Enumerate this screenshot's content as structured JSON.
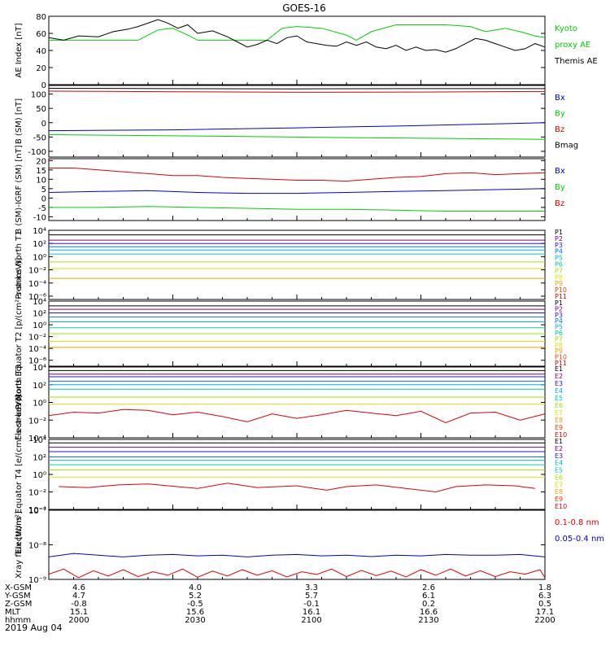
{
  "title": "GOES-16",
  "date_label": "2019 Aug 04",
  "footer": {
    "row_labels": [
      "X-GSM",
      "Y-GSM",
      "Z-GSM",
      "MLT",
      "hhmm"
    ],
    "columns": [
      [
        "4.6",
        "4.7",
        "-0.8",
        "15.1",
        "2000"
      ],
      [
        "4.0",
        "5.2",
        "-0.5",
        "15.6",
        "2030"
      ],
      [
        "3.3",
        "5.7",
        "-0.1",
        "16.1",
        "2100"
      ],
      [
        "2.6",
        "6.1",
        "0.2",
        "16.6",
        "2130"
      ],
      [
        "1.8",
        "6.3",
        "0.5",
        "17.1",
        "2200"
      ]
    ]
  },
  "colors": {
    "black": "#000000",
    "red": "#e00000",
    "green": "#00d000",
    "blue": "#0000d0",
    "p1": "#000000",
    "p2": "#800080",
    "p3": "#3010d0",
    "p4": "#0070ff",
    "p5": "#00b0e0",
    "p6": "#00d0a0",
    "p7": "#a0e000",
    "p8": "#e0e000",
    "p9": "#f0a000",
    "p10": "#f04000",
    "p11": "#e00000"
  },
  "chart_data": [
    {
      "type": "line",
      "id": "ae",
      "ylabel": "AE Index [nT]",
      "ylim": [
        0,
        80
      ],
      "ticks": [
        "0",
        "20",
        "40",
        "60",
        "80"
      ],
      "tick_values": [
        0,
        20,
        40,
        60,
        80
      ],
      "legend": [
        {
          "text": "Kyoto",
          "color": "green"
        },
        {
          "text": "proxy AE",
          "color": "green"
        },
        {
          "text": "Themis AE",
          "color": "black"
        }
      ],
      "series": [
        {
          "name": "Kyoto proxy AE",
          "color": "green",
          "x": [
            0,
            0.1,
            0.18,
            0.22,
            0.25,
            0.28,
            0.3,
            0.33,
            0.37,
            0.4,
            0.44,
            0.47,
            0.5,
            0.55,
            0.6,
            0.62,
            0.65,
            0.7,
            0.72,
            0.8,
            0.85,
            0.88,
            0.92,
            0.95,
            0.98,
            1.0
          ],
          "y": [
            52,
            52,
            52,
            64,
            66,
            58,
            52,
            52,
            52,
            52,
            52,
            66,
            68,
            66,
            58,
            52,
            62,
            70,
            70,
            70,
            68,
            62,
            66,
            62,
            57,
            55
          ]
        },
        {
          "name": "Themis AE",
          "color": "black",
          "x": [
            0,
            0.03,
            0.06,
            0.1,
            0.13,
            0.16,
            0.18,
            0.2,
            0.22,
            0.24,
            0.26,
            0.28,
            0.3,
            0.33,
            0.36,
            0.38,
            0.4,
            0.42,
            0.44,
            0.46,
            0.48,
            0.5,
            0.52,
            0.54,
            0.56,
            0.58,
            0.6,
            0.62,
            0.64,
            0.66,
            0.68,
            0.7,
            0.72,
            0.74,
            0.76,
            0.78,
            0.8,
            0.82,
            0.84,
            0.86,
            0.88,
            0.9,
            0.92,
            0.94,
            0.96,
            0.98,
            1.0
          ],
          "y": [
            55,
            52,
            57,
            56,
            62,
            65,
            68,
            72,
            76,
            72,
            66,
            70,
            60,
            63,
            56,
            50,
            44,
            47,
            52,
            48,
            55,
            57,
            50,
            48,
            46,
            45,
            50,
            46,
            50,
            44,
            42,
            46,
            40,
            44,
            40,
            41,
            38,
            42,
            48,
            54,
            52,
            48,
            44,
            40,
            42,
            48,
            44
          ]
        }
      ]
    },
    {
      "type": "line",
      "id": "bsm",
      "ylabel": "B (SM) [nT]",
      "ylim": [
        -120,
        130
      ],
      "ticks": [
        "-100",
        "-50",
        "0",
        "50",
        "100"
      ],
      "tick_values": [
        -100,
        -50,
        0,
        50,
        100
      ],
      "legend": [
        {
          "text": "Bx",
          "color": "blue"
        },
        {
          "text": "By",
          "color": "green"
        },
        {
          "text": "Bz",
          "color": "red"
        },
        {
          "text": "Bmag",
          "color": "black"
        }
      ],
      "series": [
        {
          "name": "Bmag",
          "color": "black",
          "x": [
            0,
            0.25,
            0.5,
            0.75,
            1.0
          ],
          "y": [
            120,
            119,
            118,
            119,
            119
          ]
        },
        {
          "name": "Bz",
          "color": "red",
          "x": [
            0,
            0.25,
            0.5,
            0.75,
            1.0
          ],
          "y": [
            110,
            108,
            106,
            107,
            109
          ]
        },
        {
          "name": "Bx",
          "color": "blue",
          "x": [
            0,
            0.25,
            0.5,
            0.75,
            1.0
          ],
          "y": [
            -28,
            -25,
            -18,
            -10,
            0
          ]
        },
        {
          "name": "By",
          "color": "green",
          "x": [
            0,
            0.2,
            0.4,
            0.6,
            0.8,
            1.0
          ],
          "y": [
            -42,
            -45,
            -48,
            -52,
            -55,
            -58
          ]
        }
      ]
    },
    {
      "type": "line",
      "id": "bigrf",
      "ylabel": "B (SM)-IGRF (SM) [nT]",
      "ylim": [
        -12,
        21
      ],
      "ticks": [
        "-10",
        "-5",
        "0",
        "5",
        "10",
        "15",
        "20"
      ],
      "tick_values": [
        -10,
        -5,
        0,
        5,
        10,
        15,
        20
      ],
      "legend": [
        {
          "text": "Bx",
          "color": "blue"
        },
        {
          "text": "By",
          "color": "green"
        },
        {
          "text": "Bz",
          "color": "red"
        }
      ],
      "series": [
        {
          "name": "Bz",
          "color": "red",
          "x": [
            0,
            0.05,
            0.1,
            0.15,
            0.2,
            0.25,
            0.3,
            0.35,
            0.4,
            0.45,
            0.5,
            0.55,
            0.6,
            0.65,
            0.7,
            0.75,
            0.8,
            0.85,
            0.9,
            0.95,
            1.0
          ],
          "y": [
            16,
            16,
            15,
            14,
            13,
            12,
            12,
            11,
            10.5,
            10,
            9.5,
            9.5,
            9,
            10,
            11,
            11.5,
            13,
            13.5,
            12.5,
            13,
            13.5
          ]
        },
        {
          "name": "Bx",
          "color": "blue",
          "x": [
            0,
            0.1,
            0.2,
            0.3,
            0.4,
            0.5,
            0.6,
            0.7,
            0.8,
            0.9,
            1.0
          ],
          "y": [
            3,
            3.5,
            4,
            3,
            2.5,
            2.5,
            3,
            3.5,
            4,
            4.5,
            5
          ]
        },
        {
          "name": "By",
          "color": "green",
          "x": [
            0,
            0.1,
            0.2,
            0.3,
            0.4,
            0.5,
            0.6,
            0.7,
            0.8,
            0.9,
            1.0
          ],
          "y": [
            -5,
            -5,
            -4.5,
            -5,
            -5.5,
            -6,
            -6,
            -6.5,
            -7,
            -7,
            -7
          ]
        }
      ]
    },
    {
      "type": "line",
      "id": "pn",
      "log": true,
      "ylabel": "Protons North T1",
      "ylim_exp": [
        -6.5,
        4
      ],
      "ticks": [
        "10⁴",
        "10²",
        "10⁰",
        "10⁻²",
        "10⁻⁴",
        "10⁻⁶"
      ],
      "tick_values": [
        4,
        2,
        0,
        -2,
        -4,
        -6
      ],
      "legend": [
        {
          "text": "P1",
          "color": "p1"
        },
        {
          "text": "P2",
          "color": "p2"
        },
        {
          "text": "P3",
          "color": "p3"
        },
        {
          "text": "P4",
          "color": "p4"
        },
        {
          "text": "P5",
          "color": "p5"
        },
        {
          "text": "P6",
          "color": "p6"
        },
        {
          "text": "P7",
          "color": "p7"
        },
        {
          "text": "P8",
          "color": "p8"
        },
        {
          "text": "P9",
          "color": "p9"
        },
        {
          "text": "P10",
          "color": "p10"
        },
        {
          "text": "P11",
          "color": "p11"
        }
      ],
      "levels": [
        {
          "color": "p1",
          "y": 3.3
        },
        {
          "color": "p2",
          "y": 2.5
        },
        {
          "color": "p3",
          "y": 2.0
        },
        {
          "color": "p4",
          "y": 1.5
        },
        {
          "color": "p5",
          "y": 1.0
        },
        {
          "color": "p6",
          "y": 0.4
        },
        {
          "color": "p7",
          "y": -0.8
        },
        {
          "color": "p8",
          "y": -1.8
        },
        {
          "color": "p9",
          "y": -3.3
        }
      ]
    },
    {
      "type": "line",
      "id": "pe",
      "log": true,
      "ylabel": "Protons Equator T2 [p/(cm²-s-sr-keV)]",
      "ylim_exp": [
        -7,
        4
      ],
      "ticks": [
        "10⁴",
        "10²",
        "10⁰",
        "10⁻²",
        "10⁻⁴",
        "10⁻⁶"
      ],
      "tick_values": [
        4,
        2,
        0,
        -2,
        -4,
        -6
      ],
      "legend": [
        {
          "text": "P1",
          "color": "p1"
        },
        {
          "text": "P2",
          "color": "p2"
        },
        {
          "text": "P3",
          "color": "p3"
        },
        {
          "text": "P4",
          "color": "p4"
        },
        {
          "text": "P5",
          "color": "p5"
        },
        {
          "text": "P6",
          "color": "p6"
        },
        {
          "text": "P7",
          "color": "p7"
        },
        {
          "text": "P8",
          "color": "p8"
        },
        {
          "text": "P9",
          "color": "p9"
        },
        {
          "text": "P10",
          "color": "p10"
        },
        {
          "text": "P11",
          "color": "p11"
        }
      ],
      "levels": [
        {
          "color": "p1",
          "y": 3.2
        },
        {
          "color": "p2",
          "y": 2.6
        },
        {
          "color": "p3",
          "y": 2.0
        },
        {
          "color": "p4",
          "y": 1.3
        },
        {
          "color": "p5",
          "y": 0.5
        },
        {
          "color": "p6",
          "y": -0.5
        },
        {
          "color": "p7",
          "y": -1.5
        },
        {
          "color": "p8",
          "y": -2.8
        },
        {
          "color": "p9",
          "y": -3.8
        }
      ]
    },
    {
      "type": "line",
      "id": "en",
      "log": true,
      "ylabel": "Electrons North T3",
      "ylim_exp": [
        -4,
        4
      ],
      "ticks": [
        "10⁴",
        "10²",
        "10⁰",
        "10⁻²",
        "10⁻⁴"
      ],
      "tick_values": [
        4,
        2,
        0,
        -2,
        -4
      ],
      "legend": [
        {
          "text": "E1",
          "color": "p1"
        },
        {
          "text": "E2",
          "color": "p2"
        },
        {
          "text": "E3",
          "color": "p3"
        },
        {
          "text": "E4",
          "color": "p5"
        },
        {
          "text": "E5",
          "color": "p6"
        },
        {
          "text": "E6",
          "color": "p7"
        },
        {
          "text": "E7",
          "color": "p8"
        },
        {
          "text": "E8",
          "color": "p9"
        },
        {
          "text": "E9",
          "color": "p10"
        },
        {
          "text": "E10",
          "color": "p11"
        }
      ],
      "levels": [
        {
          "color": "p1",
          "y": 3.6
        },
        {
          "color": "p2",
          "y": 3.2
        },
        {
          "color": "p3",
          "y": 2.9
        },
        {
          "color": "p4",
          "y": 2.4
        },
        {
          "color": "p5",
          "y": 2.0
        },
        {
          "color": "p6",
          "y": 1.5
        },
        {
          "color": "p7",
          "y": 0.6
        },
        {
          "color": "p8",
          "y": -0.2
        }
      ],
      "noisy": {
        "color": "p11",
        "x": [
          0,
          0.05,
          0.1,
          0.15,
          0.2,
          0.25,
          0.3,
          0.35,
          0.4,
          0.45,
          0.5,
          0.55,
          0.6,
          0.65,
          0.7,
          0.75,
          0.8,
          0.85,
          0.9,
          0.95,
          1.0
        ],
        "y": [
          -1.5,
          -1.1,
          -1.2,
          -0.8,
          -0.9,
          -1.4,
          -1.1,
          -1.6,
          -2.2,
          -1.3,
          -1.8,
          -1.4,
          -0.9,
          -1.2,
          -1.5,
          -1.0,
          -2.3,
          -1.2,
          -1.1,
          -2.0,
          -1.3
        ]
      }
    },
    {
      "type": "line",
      "id": "ee",
      "log": true,
      "ylabel": "Electrons Equator T4 [e/(cm²-s-sr-keV)]",
      "ylim_exp": [
        -4,
        4
      ],
      "ticks": [
        "10⁴",
        "10²",
        "10⁰",
        "10⁻²",
        "10⁻⁴"
      ],
      "tick_values": [
        4,
        2,
        0,
        -2,
        -4
      ],
      "legend": [
        {
          "text": "E1",
          "color": "p1"
        },
        {
          "text": "E2",
          "color": "p2"
        },
        {
          "text": "E3",
          "color": "p3"
        },
        {
          "text": "E4",
          "color": "p5"
        },
        {
          "text": "E5",
          "color": "p6"
        },
        {
          "text": "E6",
          "color": "p7"
        },
        {
          "text": "E7",
          "color": "p8"
        },
        {
          "text": "E8",
          "color": "p9"
        },
        {
          "text": "E9",
          "color": "p10"
        },
        {
          "text": "E10",
          "color": "p11"
        }
      ],
      "levels": [
        {
          "color": "p1",
          "y": 3.6
        },
        {
          "color": "p2",
          "y": 3.1
        },
        {
          "color": "p3",
          "y": 2.6
        },
        {
          "color": "p4",
          "y": 2.0
        },
        {
          "color": "p5",
          "y": 1.6
        },
        {
          "color": "p6",
          "y": 1.1
        },
        {
          "color": "p7",
          "y": 0.5
        },
        {
          "color": "p8",
          "y": -0.3
        }
      ],
      "noisy": {
        "color": "p11",
        "x": [
          0.02,
          0.08,
          0.14,
          0.2,
          0.3,
          0.36,
          0.42,
          0.5,
          0.56,
          0.6,
          0.66,
          0.72,
          0.78,
          0.82,
          0.88,
          0.94,
          0.98
        ],
        "y": [
          -1.4,
          -1.5,
          -1.2,
          -1.1,
          -1.6,
          -1.0,
          -1.5,
          -1.3,
          -1.8,
          -1.4,
          -1.2,
          -1.6,
          -2.0,
          -1.4,
          -1.2,
          -1.3,
          -1.6
        ]
      }
    },
    {
      "type": "line",
      "id": "xray",
      "log": true,
      "ylabel": "Xray flux [W/m²]",
      "ylim_exp": [
        -9,
        -7
      ],
      "ticks": [
        "10⁻⁷",
        "10⁻⁸",
        "10⁻⁹"
      ],
      "tick_values": [
        -7,
        -8,
        -9
      ],
      "legend": [
        {
          "text": "0.1-0.8 nm",
          "color": "red"
        },
        {
          "text": "0.05-0.4 nm",
          "color": "blue"
        }
      ],
      "series": [
        {
          "name": "0.05-0.4 nm",
          "color": "blue",
          "x": [
            0,
            0.05,
            0.1,
            0.15,
            0.2,
            0.25,
            0.3,
            0.35,
            0.4,
            0.45,
            0.5,
            0.55,
            0.6,
            0.65,
            0.7,
            0.75,
            0.8,
            0.85,
            0.9,
            0.95,
            1.0
          ],
          "y": [
            -8.35,
            -8.25,
            -8.3,
            -8.35,
            -8.3,
            -8.28,
            -8.32,
            -8.3,
            -8.35,
            -8.3,
            -8.28,
            -8.32,
            -8.3,
            -8.34,
            -8.3,
            -8.32,
            -8.28,
            -8.3,
            -8.3,
            -8.28,
            -8.35
          ]
        },
        {
          "name": "0.1-0.8 nm",
          "color": "red",
          "x": [
            0,
            0.03,
            0.06,
            0.09,
            0.12,
            0.15,
            0.18,
            0.21,
            0.24,
            0.27,
            0.3,
            0.33,
            0.36,
            0.39,
            0.42,
            0.45,
            0.48,
            0.51,
            0.54,
            0.57,
            0.6,
            0.63,
            0.66,
            0.69,
            0.72,
            0.75,
            0.78,
            0.81,
            0.84,
            0.87,
            0.9,
            0.93,
            0.96,
            0.99,
            1.0
          ],
          "y": [
            -8.85,
            -8.7,
            -8.95,
            -8.75,
            -8.9,
            -8.72,
            -8.92,
            -8.78,
            -8.88,
            -8.7,
            -8.94,
            -8.76,
            -8.9,
            -8.72,
            -8.88,
            -8.75,
            -8.93,
            -8.78,
            -8.86,
            -8.7,
            -8.92,
            -8.74,
            -8.89,
            -8.76,
            -8.93,
            -8.72,
            -8.88,
            -8.7,
            -8.9,
            -8.75,
            -8.92,
            -8.78,
            -8.85,
            -8.72,
            -8.95
          ]
        }
      ]
    }
  ]
}
